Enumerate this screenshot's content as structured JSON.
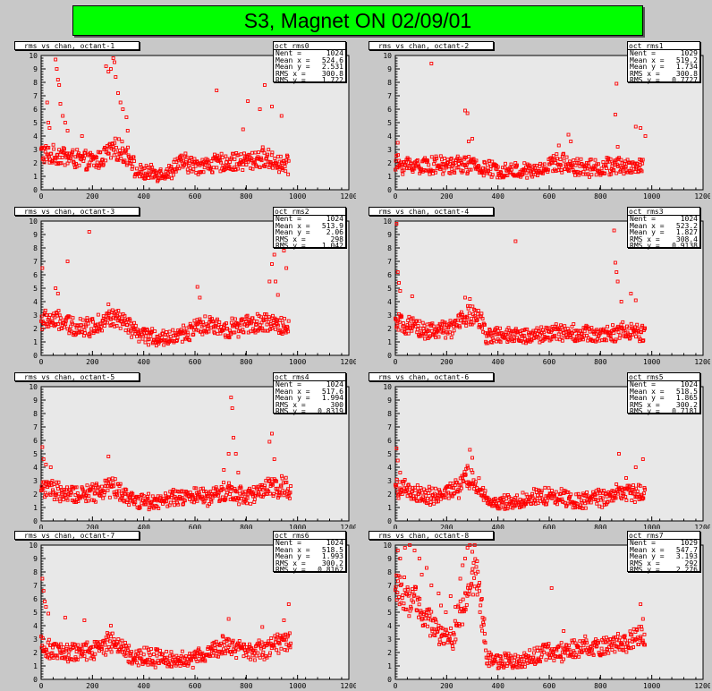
{
  "main_title": "S3, Magnet ON 02/09/01",
  "colors": {
    "canvas": "#c8c8c8",
    "frame": "#e8e8e8",
    "marker": "#ff0000",
    "title_bg": "#00ff00"
  },
  "axis": {
    "xlim": [
      0,
      1280
    ],
    "ylim": [
      0,
      10
    ],
    "x_ticks": [
      "0",
      "200",
      "400",
      "600",
      "800",
      "1000",
      "1200"
    ],
    "y_ticks": [
      "0",
      "1",
      "2",
      "3",
      "4",
      "5",
      "6",
      "7",
      "8",
      "9",
      "10"
    ]
  },
  "stat_labels": {
    "entries": "Nent =",
    "mean_x": "Mean x =",
    "mean_y": "Mean y =",
    "rms_x": "RMS x =",
    "rms_y": "RMS y ="
  },
  "chart_data": [
    {
      "type": "scatter",
      "title": "rms vs chan, octant-1",
      "hist": "oct_rms0",
      "stats": {
        "entries": "1024",
        "mean_x": "524.6",
        "mean_y": "2.531",
        "rms_x": "300.8",
        "rms_y": "1.722"
      },
      "baseline": [
        [
          0,
          2.8
        ],
        [
          40,
          2.5
        ],
        [
          80,
          2.6
        ],
        [
          120,
          2.4
        ],
        [
          160,
          2.2
        ],
        [
          200,
          2.1
        ],
        [
          240,
          2.2
        ],
        [
          280,
          2.8
        ],
        [
          320,
          3.0
        ],
        [
          360,
          2.6
        ],
        [
          380,
          2.3
        ],
        [
          390,
          1.3
        ],
        [
          460,
          1.2
        ],
        [
          540,
          1.3
        ],
        [
          560,
          1.9
        ],
        [
          600,
          2.0
        ],
        [
          640,
          1.8
        ],
        [
          700,
          1.9
        ],
        [
          760,
          2.0
        ],
        [
          820,
          2.1
        ],
        [
          880,
          2.2
        ],
        [
          920,
          2.4
        ],
        [
          960,
          2.2
        ],
        [
          1000,
          1.9
        ],
        [
          1030,
          1.8
        ]
      ],
      "outliers": [
        [
          30,
          5.0
        ],
        [
          35,
          4.6
        ],
        [
          60,
          9.7
        ],
        [
          65,
          9.0
        ],
        [
          70,
          8.2
        ],
        [
          75,
          7.8
        ],
        [
          80,
          6.4
        ],
        [
          90,
          5.5
        ],
        [
          100,
          5.0
        ],
        [
          110,
          4.4
        ],
        [
          270,
          9.2
        ],
        [
          280,
          8.8
        ],
        [
          290,
          9.0
        ],
        [
          300,
          9.8
        ],
        [
          305,
          9.5
        ],
        [
          310,
          8.4
        ],
        [
          320,
          7.2
        ],
        [
          330,
          6.5
        ],
        [
          340,
          6.0
        ],
        [
          355,
          5.4
        ],
        [
          360,
          4.4
        ],
        [
          730,
          7.4
        ],
        [
          860,
          6.6
        ],
        [
          910,
          6.0
        ],
        [
          930,
          7.8
        ],
        [
          960,
          6.2
        ],
        [
          1000,
          5.5
        ],
        [
          25,
          6.5
        ],
        [
          170,
          4.0
        ],
        [
          840,
          4.5
        ]
      ]
    },
    {
      "type": "scatter",
      "title": "rms vs chan, octant-2",
      "hist": "oct_rms1",
      "stats": {
        "entries": "1029",
        "mean_x": "519.2",
        "mean_y": "1.734",
        "rms_x": "300.8",
        "rms_y": "0.7727"
      },
      "baseline": [
        [
          0,
          1.9
        ],
        [
          100,
          1.8
        ],
        [
          200,
          1.8
        ],
        [
          300,
          1.9
        ],
        [
          360,
          1.6
        ],
        [
          400,
          1.5
        ],
        [
          500,
          1.4
        ],
        [
          600,
          1.4
        ],
        [
          640,
          1.9
        ],
        [
          700,
          2.0
        ],
        [
          760,
          1.7
        ],
        [
          840,
          1.6
        ],
        [
          900,
          1.8
        ],
        [
          960,
          1.7
        ],
        [
          1030,
          1.8
        ]
      ],
      "outliers": [
        [
          10,
          3.5
        ],
        [
          150,
          9.4
        ],
        [
          290,
          5.9
        ],
        [
          300,
          5.7
        ],
        [
          305,
          3.6
        ],
        [
          320,
          3.8
        ],
        [
          720,
          4.1
        ],
        [
          730,
          3.6
        ],
        [
          680,
          3.3
        ],
        [
          920,
          7.9
        ],
        [
          915,
          5.6
        ],
        [
          1000,
          4.7
        ],
        [
          1020,
          4.6
        ],
        [
          1040,
          4.0
        ],
        [
          925,
          3.2
        ]
      ]
    },
    {
      "type": "scatter",
      "title": "rms vs chan, octant-3",
      "hist": "oct_rms2",
      "stats": {
        "entries": "1024",
        "mean_x": "513.9",
        "mean_y": "2.06",
        "rms_x": "298",
        "rms_y": "1.042"
      },
      "baseline": [
        [
          0,
          2.6
        ],
        [
          60,
          2.6
        ],
        [
          120,
          2.2
        ],
        [
          200,
          2.1
        ],
        [
          260,
          2.6
        ],
        [
          300,
          2.8
        ],
        [
          360,
          2.2
        ],
        [
          400,
          1.5
        ],
        [
          500,
          1.3
        ],
        [
          560,
          1.4
        ],
        [
          640,
          2.0
        ],
        [
          700,
          2.2
        ],
        [
          760,
          2.0
        ],
        [
          820,
          2.1
        ],
        [
          880,
          2.3
        ],
        [
          940,
          2.4
        ],
        [
          990,
          2.2
        ],
        [
          1030,
          2.0
        ]
      ],
      "outliers": [
        [
          5,
          6.5
        ],
        [
          60,
          5.0
        ],
        [
          70,
          4.6
        ],
        [
          110,
          7.0
        ],
        [
          200,
          9.2
        ],
        [
          280,
          3.8
        ],
        [
          650,
          5.1
        ],
        [
          660,
          4.3
        ],
        [
          950,
          5.5
        ],
        [
          960,
          6.8
        ],
        [
          970,
          7.5
        ],
        [
          980,
          8.1
        ],
        [
          990,
          9.3
        ],
        [
          1000,
          9.0
        ],
        [
          1010,
          7.8
        ],
        [
          1020,
          6.5
        ],
        [
          975,
          5.5
        ],
        [
          985,
          4.5
        ]
      ]
    },
    {
      "type": "scatter",
      "title": "rms vs chan, octant-4",
      "hist": "oct_rms3",
      "stats": {
        "entries": "1024",
        "mean_x": "523.2",
        "mean_y": "1.827",
        "rms_x": "308.4",
        "rms_y": "0.9138"
      },
      "baseline": [
        [
          0,
          2.4
        ],
        [
          80,
          2.0
        ],
        [
          160,
          1.8
        ],
        [
          240,
          2.0
        ],
        [
          280,
          2.8
        ],
        [
          320,
          3.0
        ],
        [
          360,
          2.4
        ],
        [
          380,
          1.5
        ],
        [
          480,
          1.4
        ],
        [
          560,
          1.5
        ],
        [
          640,
          1.6
        ],
        [
          700,
          1.8
        ],
        [
          780,
          1.6
        ],
        [
          860,
          1.5
        ],
        [
          900,
          1.7
        ],
        [
          960,
          1.8
        ],
        [
          1040,
          1.6
        ]
      ],
      "outliers": [
        [
          5,
          9.8
        ],
        [
          10,
          6.2
        ],
        [
          15,
          5.4
        ],
        [
          20,
          4.8
        ],
        [
          70,
          4.4
        ],
        [
          290,
          4.3
        ],
        [
          310,
          4.2
        ],
        [
          500,
          8.5
        ],
        [
          910,
          9.3
        ],
        [
          915,
          6.9
        ],
        [
          920,
          6.2
        ],
        [
          925,
          5.5
        ],
        [
          1000,
          4.1
        ],
        [
          980,
          4.6
        ],
        [
          940,
          4.0
        ]
      ]
    },
    {
      "type": "scatter",
      "title": "rms vs chan, octant-5",
      "hist": "oct_rms4",
      "stats": {
        "entries": "1024",
        "mean_x": "517.6",
        "mean_y": "1.994",
        "rms_x": "300",
        "rms_y": "0.8319"
      },
      "baseline": [
        [
          0,
          2.6
        ],
        [
          60,
          2.2
        ],
        [
          120,
          1.9
        ],
        [
          200,
          2.0
        ],
        [
          260,
          2.4
        ],
        [
          300,
          2.6
        ],
        [
          340,
          2.0
        ],
        [
          400,
          1.5
        ],
        [
          500,
          1.5
        ],
        [
          560,
          1.7
        ],
        [
          640,
          1.8
        ],
        [
          700,
          1.8
        ],
        [
          760,
          2.2
        ],
        [
          820,
          2.0
        ],
        [
          880,
          1.9
        ],
        [
          940,
          2.4
        ],
        [
          1000,
          2.6
        ],
        [
          1040,
          2.4
        ]
      ],
      "outliers": [
        [
          5,
          5.5
        ],
        [
          10,
          4.6
        ],
        [
          20,
          4.2
        ],
        [
          40,
          4.0
        ],
        [
          280,
          4.8
        ],
        [
          760,
          3.8
        ],
        [
          780,
          5.0
        ],
        [
          790,
          9.2
        ],
        [
          795,
          8.4
        ],
        [
          800,
          6.2
        ],
        [
          810,
          5.0
        ],
        [
          820,
          3.6
        ],
        [
          950,
          5.9
        ],
        [
          960,
          6.5
        ],
        [
          970,
          4.6
        ]
      ]
    },
    {
      "type": "scatter",
      "title": "rms vs chan, octant-6",
      "hist": "oct_rms5",
      "stats": {
        "entries": "1024",
        "mean_x": "518.5",
        "mean_y": "1.865",
        "rms_x": "300.2",
        "rms_y": "0.7181"
      },
      "baseline": [
        [
          0,
          2.6
        ],
        [
          60,
          2.1
        ],
        [
          120,
          1.8
        ],
        [
          200,
          2.0
        ],
        [
          260,
          2.4
        ],
        [
          300,
          3.2
        ],
        [
          330,
          2.8
        ],
        [
          360,
          2.3
        ],
        [
          380,
          1.3
        ],
        [
          480,
          1.4
        ],
        [
          560,
          1.6
        ],
        [
          640,
          1.9
        ],
        [
          700,
          1.8
        ],
        [
          760,
          1.5
        ],
        [
          820,
          1.6
        ],
        [
          880,
          1.8
        ],
        [
          940,
          2.2
        ],
        [
          1000,
          2.0
        ],
        [
          1040,
          2.2
        ]
      ],
      "outliers": [
        [
          5,
          5.4
        ],
        [
          10,
          4.5
        ],
        [
          20,
          3.6
        ],
        [
          310,
          5.3
        ],
        [
          320,
          4.7
        ],
        [
          300,
          4.1
        ],
        [
          930,
          5.0
        ],
        [
          1030,
          4.6
        ],
        [
          1000,
          4.0
        ],
        [
          960,
          3.2
        ]
      ]
    },
    {
      "type": "scatter",
      "title": "rms vs chan, octant-7",
      "hist": "oct_rms6",
      "stats": {
        "entries": "1024",
        "mean_x": "518.5",
        "mean_y": "1.993",
        "rms_x": "300.2",
        "rms_y": "0.8162"
      },
      "baseline": [
        [
          0,
          2.4
        ],
        [
          60,
          2.1
        ],
        [
          120,
          2.0
        ],
        [
          200,
          2.1
        ],
        [
          260,
          2.6
        ],
        [
          300,
          2.8
        ],
        [
          340,
          2.2
        ],
        [
          400,
          1.7
        ],
        [
          480,
          1.6
        ],
        [
          560,
          1.5
        ],
        [
          640,
          1.6
        ],
        [
          700,
          2.0
        ],
        [
          760,
          2.6
        ],
        [
          820,
          2.2
        ],
        [
          880,
          2.0
        ],
        [
          960,
          2.4
        ],
        [
          1000,
          2.8
        ],
        [
          1040,
          2.9
        ]
      ],
      "outliers": [
        [
          5,
          7.5
        ],
        [
          10,
          6.6
        ],
        [
          15,
          5.8
        ],
        [
          20,
          5.4
        ],
        [
          30,
          4.9
        ],
        [
          100,
          4.6
        ],
        [
          180,
          4.4
        ],
        [
          290,
          4.0
        ],
        [
          780,
          4.5
        ],
        [
          920,
          3.9
        ],
        [
          1020,
          8.2
        ],
        [
          1030,
          5.6
        ],
        [
          1010,
          4.4
        ]
      ]
    },
    {
      "type": "scatter",
      "title": "rms vs chan, octant-8",
      "hist": "oct_rms7",
      "stats": {
        "entries": "1029",
        "mean_x": "547.7",
        "mean_y": "3.193",
        "rms_x": "292",
        "rms_y": "2.276"
      },
      "baseline": [
        [
          0,
          7.0
        ],
        [
          30,
          6.5
        ],
        [
          60,
          5.5
        ],
        [
          90,
          6.0
        ],
        [
          120,
          4.8
        ],
        [
          160,
          3.8
        ],
        [
          200,
          3.2
        ],
        [
          240,
          3.0
        ],
        [
          260,
          4.5
        ],
        [
          300,
          6.0
        ],
        [
          330,
          8.0
        ],
        [
          350,
          6.5
        ],
        [
          370,
          3.0
        ],
        [
          380,
          1.6
        ],
        [
          440,
          1.4
        ],
        [
          520,
          1.4
        ],
        [
          560,
          1.6
        ],
        [
          620,
          2.0
        ],
        [
          680,
          2.0
        ],
        [
          740,
          2.2
        ],
        [
          800,
          2.6
        ],
        [
          860,
          2.4
        ],
        [
          920,
          2.6
        ],
        [
          980,
          3.0
        ],
        [
          1040,
          3.2
        ]
      ],
      "outliers": [
        [
          10,
          9.6
        ],
        [
          20,
          9.0
        ],
        [
          40,
          9.8
        ],
        [
          60,
          10.0
        ],
        [
          80,
          9.6
        ],
        [
          100,
          9.0
        ],
        [
          110,
          7.8
        ],
        [
          130,
          8.3
        ],
        [
          150,
          7.0
        ],
        [
          180,
          6.4
        ],
        [
          190,
          5.5
        ],
        [
          210,
          5.0
        ],
        [
          230,
          6.2
        ],
        [
          250,
          5.4
        ],
        [
          270,
          7.5
        ],
        [
          280,
          8.5
        ],
        [
          290,
          9.0
        ],
        [
          300,
          9.8
        ],
        [
          310,
          10.0
        ],
        [
          320,
          9.5
        ],
        [
          330,
          10.0
        ],
        [
          340,
          8.8
        ],
        [
          350,
          7.2
        ],
        [
          360,
          6.0
        ],
        [
          370,
          4.5
        ],
        [
          650,
          6.8
        ],
        [
          1010,
          8.3
        ],
        [
          1020,
          5.6
        ],
        [
          1030,
          4.5
        ],
        [
          700,
          3.6
        ]
      ]
    }
  ]
}
